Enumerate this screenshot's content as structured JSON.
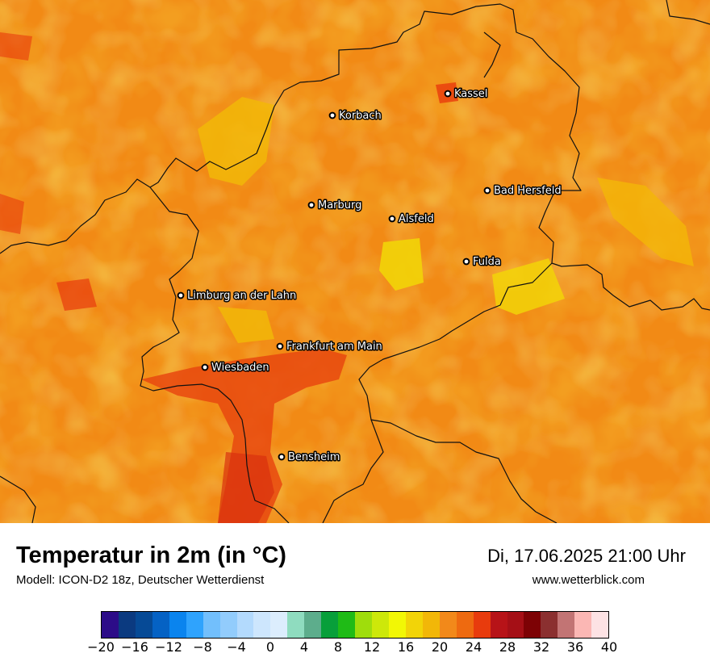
{
  "map": {
    "background_color": "#f28a13",
    "border_color": "#111111",
    "cities": [
      {
        "name": "Kassel",
        "lat": 51.316,
        "lon": 9.497
      },
      {
        "name": "Korbach",
        "lat": 51.275,
        "lon": 8.872
      },
      {
        "name": "Bad Hersfeld",
        "lat": 50.869,
        "lon": 9.707
      },
      {
        "name": "Marburg",
        "lat": 50.809,
        "lon": 8.771
      },
      {
        "name": "Alsfeld",
        "lat": 50.751,
        "lon": 9.271
      },
      {
        "name": "Fulda",
        "lat": 50.555,
        "lon": 9.68
      },
      {
        "name": "Limburg an der Lahn",
        "lat": 50.389,
        "lon": 8.064
      },
      {
        "name": "Frankfurt am Main",
        "lat": 50.11,
        "lon": 8.682
      },
      {
        "name": "Wiesbaden",
        "lat": 50.078,
        "lon": 8.24
      },
      {
        "name": "Bensheim",
        "lat": 49.681,
        "lon": 8.623
      }
    ]
  },
  "header": {
    "title": "Temperatur in 2m (in °C)",
    "subtitle": "Modell: ICON-D2 18z, Deutscher Wetterdienst",
    "datetime": "Di, 17.06.2025 21:00 Uhr",
    "website": "www.wetterblick.com"
  },
  "legend": {
    "colors": [
      "#2c0c88",
      "#0b3a80",
      "#064a96",
      "#0562c4",
      "#0a84ee",
      "#2fa3fd",
      "#72bffc",
      "#92ccfc",
      "#b3dafd",
      "#cde6fd",
      "#dcedfd",
      "#8fdcbf",
      "#5dad8c",
      "#089f3a",
      "#1fbb16",
      "#9fdd0c",
      "#cde80a",
      "#f2f705",
      "#f2d408",
      "#f2b708",
      "#f2891a",
      "#ee6a10",
      "#e83b0d",
      "#b71318",
      "#a50f16",
      "#7d0205",
      "#8b3030",
      "#c27474",
      "#fbb7b4",
      "#fde2e4"
    ],
    "tick_labels": [
      "−20",
      "−16",
      "−12",
      "−8",
      "−4",
      "0",
      "4",
      "8",
      "12",
      "16",
      "20",
      "24",
      "28",
      "32",
      "36",
      "40"
    ],
    "min": -20,
    "max": 40
  }
}
